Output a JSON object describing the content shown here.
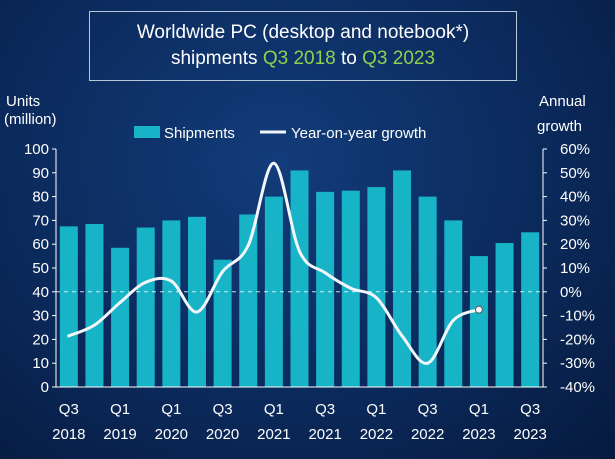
{
  "chart_data": {
    "type": "bar",
    "title_line1": "Worldwide PC (desktop and notebook*)",
    "title_line2_pre": "shipments",
    "title_q3_start": "Q3 2018",
    "title_to": "to",
    "title_q3_end": "Q3 2023",
    "ylabel_left_1": "Units",
    "ylabel_left_2": "(million)",
    "ylabel_right_1": "Annual",
    "ylabel_right_2": "growth",
    "legend": {
      "bars": "Shipments",
      "line": "Year-on-year growth",
      "placement": "top-center"
    },
    "y_left_ticks": [
      "100",
      "90",
      "80",
      "70",
      "60",
      "50",
      "40",
      "30",
      "20",
      "10",
      "0"
    ],
    "y_right_ticks": [
      "60%",
      "50%",
      "40%",
      "30%",
      "20%",
      "10%",
      "0%",
      "-10%",
      "-20%",
      "-30%",
      "-40%"
    ],
    "ylim_left": [
      0,
      100
    ],
    "ylim_right": [
      -40,
      60
    ],
    "x_tick_labels": [
      {
        "q": "Q3",
        "y": "2018"
      },
      {
        "q": "Q1",
        "y": "2019"
      },
      {
        "q": "Q1",
        "y": "2020"
      },
      {
        "q": "Q3",
        "y": "2020"
      },
      {
        "q": "Q1",
        "y": "2021"
      },
      {
        "q": "Q3",
        "y": "2021"
      },
      {
        "q": "Q1",
        "y": "2022"
      },
      {
        "q": "Q3",
        "y": "2022"
      },
      {
        "q": "Q1",
        "y": "2023"
      },
      {
        "q": "Q3",
        "y": "2023"
      }
    ],
    "series": [
      {
        "name": "Shipments",
        "type": "bar",
        "color": "#17b4c8",
        "values": [
          67.5,
          68.5,
          58.5,
          67,
          70,
          71.5,
          53.5,
          72.5,
          80,
          91,
          82,
          82.5,
          84,
          91,
          80,
          70,
          55,
          60.5,
          65
        ]
      },
      {
        "name": "Year-on-year growth",
        "type": "line",
        "color": "#f2f6fb",
        "values": [
          -18.5,
          -14,
          -4.5,
          4,
          4.5,
          -8.5,
          8.5,
          19.5,
          54,
          17,
          8,
          1.5,
          -2.5,
          -18.5,
          -30,
          -12,
          -7.5
        ]
      }
    ],
    "dashed_reference": "0%"
  }
}
